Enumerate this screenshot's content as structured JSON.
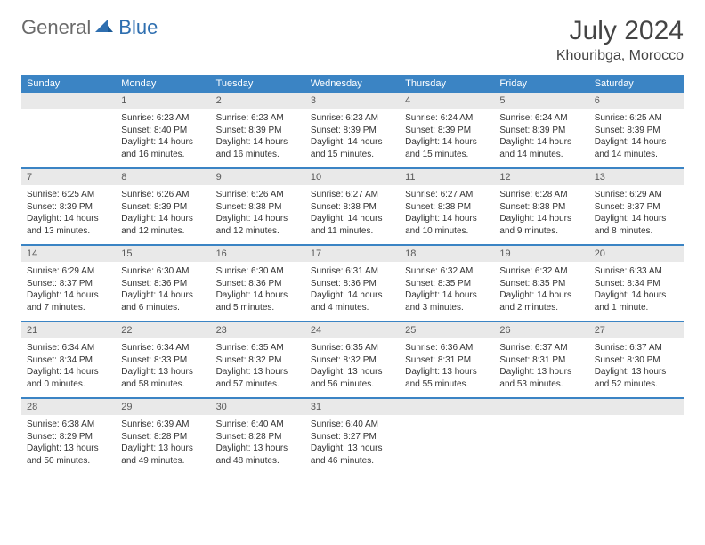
{
  "brand": {
    "word1": "General",
    "word2": "Blue",
    "text_color": "#6a6a6a",
    "accent_color": "#2f6fb0"
  },
  "title": {
    "month": "July 2024",
    "location": "Khouribga, Morocco"
  },
  "style": {
    "header_bg": "#3b84c4",
    "header_text": "#ffffff",
    "daynum_bg": "#e9e9e9",
    "daynum_text": "#5a5a5a",
    "body_bg": "#ffffff",
    "body_text": "#333333",
    "separator_color": "#3b84c4",
    "font_family": "Arial",
    "dow_fontsize": 11,
    "daynum_fontsize": 11,
    "body_fontsize": 10,
    "title_fontsize": 30,
    "location_fontsize": 16
  },
  "days_of_week": [
    "Sunday",
    "Monday",
    "Tuesday",
    "Wednesday",
    "Thursday",
    "Friday",
    "Saturday"
  ],
  "weeks": [
    [
      null,
      {
        "n": "1",
        "sr": "Sunrise: 6:23 AM",
        "ss": "Sunset: 8:40 PM",
        "d1": "Daylight: 14 hours",
        "d2": "and 16 minutes."
      },
      {
        "n": "2",
        "sr": "Sunrise: 6:23 AM",
        "ss": "Sunset: 8:39 PM",
        "d1": "Daylight: 14 hours",
        "d2": "and 16 minutes."
      },
      {
        "n": "3",
        "sr": "Sunrise: 6:23 AM",
        "ss": "Sunset: 8:39 PM",
        "d1": "Daylight: 14 hours",
        "d2": "and 15 minutes."
      },
      {
        "n": "4",
        "sr": "Sunrise: 6:24 AM",
        "ss": "Sunset: 8:39 PM",
        "d1": "Daylight: 14 hours",
        "d2": "and 15 minutes."
      },
      {
        "n": "5",
        "sr": "Sunrise: 6:24 AM",
        "ss": "Sunset: 8:39 PM",
        "d1": "Daylight: 14 hours",
        "d2": "and 14 minutes."
      },
      {
        "n": "6",
        "sr": "Sunrise: 6:25 AM",
        "ss": "Sunset: 8:39 PM",
        "d1": "Daylight: 14 hours",
        "d2": "and 14 minutes."
      }
    ],
    [
      {
        "n": "7",
        "sr": "Sunrise: 6:25 AM",
        "ss": "Sunset: 8:39 PM",
        "d1": "Daylight: 14 hours",
        "d2": "and 13 minutes."
      },
      {
        "n": "8",
        "sr": "Sunrise: 6:26 AM",
        "ss": "Sunset: 8:39 PM",
        "d1": "Daylight: 14 hours",
        "d2": "and 12 minutes."
      },
      {
        "n": "9",
        "sr": "Sunrise: 6:26 AM",
        "ss": "Sunset: 8:38 PM",
        "d1": "Daylight: 14 hours",
        "d2": "and 12 minutes."
      },
      {
        "n": "10",
        "sr": "Sunrise: 6:27 AM",
        "ss": "Sunset: 8:38 PM",
        "d1": "Daylight: 14 hours",
        "d2": "and 11 minutes."
      },
      {
        "n": "11",
        "sr": "Sunrise: 6:27 AM",
        "ss": "Sunset: 8:38 PM",
        "d1": "Daylight: 14 hours",
        "d2": "and 10 minutes."
      },
      {
        "n": "12",
        "sr": "Sunrise: 6:28 AM",
        "ss": "Sunset: 8:38 PM",
        "d1": "Daylight: 14 hours",
        "d2": "and 9 minutes."
      },
      {
        "n": "13",
        "sr": "Sunrise: 6:29 AM",
        "ss": "Sunset: 8:37 PM",
        "d1": "Daylight: 14 hours",
        "d2": "and 8 minutes."
      }
    ],
    [
      {
        "n": "14",
        "sr": "Sunrise: 6:29 AM",
        "ss": "Sunset: 8:37 PM",
        "d1": "Daylight: 14 hours",
        "d2": "and 7 minutes."
      },
      {
        "n": "15",
        "sr": "Sunrise: 6:30 AM",
        "ss": "Sunset: 8:36 PM",
        "d1": "Daylight: 14 hours",
        "d2": "and 6 minutes."
      },
      {
        "n": "16",
        "sr": "Sunrise: 6:30 AM",
        "ss": "Sunset: 8:36 PM",
        "d1": "Daylight: 14 hours",
        "d2": "and 5 minutes."
      },
      {
        "n": "17",
        "sr": "Sunrise: 6:31 AM",
        "ss": "Sunset: 8:36 PM",
        "d1": "Daylight: 14 hours",
        "d2": "and 4 minutes."
      },
      {
        "n": "18",
        "sr": "Sunrise: 6:32 AM",
        "ss": "Sunset: 8:35 PM",
        "d1": "Daylight: 14 hours",
        "d2": "and 3 minutes."
      },
      {
        "n": "19",
        "sr": "Sunrise: 6:32 AM",
        "ss": "Sunset: 8:35 PM",
        "d1": "Daylight: 14 hours",
        "d2": "and 2 minutes."
      },
      {
        "n": "20",
        "sr": "Sunrise: 6:33 AM",
        "ss": "Sunset: 8:34 PM",
        "d1": "Daylight: 14 hours",
        "d2": "and 1 minute."
      }
    ],
    [
      {
        "n": "21",
        "sr": "Sunrise: 6:34 AM",
        "ss": "Sunset: 8:34 PM",
        "d1": "Daylight: 14 hours",
        "d2": "and 0 minutes."
      },
      {
        "n": "22",
        "sr": "Sunrise: 6:34 AM",
        "ss": "Sunset: 8:33 PM",
        "d1": "Daylight: 13 hours",
        "d2": "and 58 minutes."
      },
      {
        "n": "23",
        "sr": "Sunrise: 6:35 AM",
        "ss": "Sunset: 8:32 PM",
        "d1": "Daylight: 13 hours",
        "d2": "and 57 minutes."
      },
      {
        "n": "24",
        "sr": "Sunrise: 6:35 AM",
        "ss": "Sunset: 8:32 PM",
        "d1": "Daylight: 13 hours",
        "d2": "and 56 minutes."
      },
      {
        "n": "25",
        "sr": "Sunrise: 6:36 AM",
        "ss": "Sunset: 8:31 PM",
        "d1": "Daylight: 13 hours",
        "d2": "and 55 minutes."
      },
      {
        "n": "26",
        "sr": "Sunrise: 6:37 AM",
        "ss": "Sunset: 8:31 PM",
        "d1": "Daylight: 13 hours",
        "d2": "and 53 minutes."
      },
      {
        "n": "27",
        "sr": "Sunrise: 6:37 AM",
        "ss": "Sunset: 8:30 PM",
        "d1": "Daylight: 13 hours",
        "d2": "and 52 minutes."
      }
    ],
    [
      {
        "n": "28",
        "sr": "Sunrise: 6:38 AM",
        "ss": "Sunset: 8:29 PM",
        "d1": "Daylight: 13 hours",
        "d2": "and 50 minutes."
      },
      {
        "n": "29",
        "sr": "Sunrise: 6:39 AM",
        "ss": "Sunset: 8:28 PM",
        "d1": "Daylight: 13 hours",
        "d2": "and 49 minutes."
      },
      {
        "n": "30",
        "sr": "Sunrise: 6:40 AM",
        "ss": "Sunset: 8:28 PM",
        "d1": "Daylight: 13 hours",
        "d2": "and 48 minutes."
      },
      {
        "n": "31",
        "sr": "Sunrise: 6:40 AM",
        "ss": "Sunset: 8:27 PM",
        "d1": "Daylight: 13 hours",
        "d2": "and 46 minutes."
      },
      null,
      null,
      null
    ]
  ]
}
